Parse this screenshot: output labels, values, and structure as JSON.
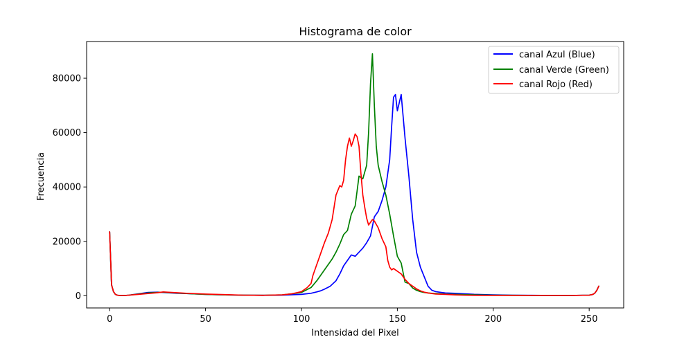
{
  "chart_data": {
    "type": "line",
    "title": "Histograma de color",
    "xlabel": "Intensidad del Pixel",
    "ylabel": "Frecuencia",
    "xlim": [
      -12,
      268
    ],
    "ylim": [
      -4500,
      93500
    ],
    "xticks": [
      0,
      50,
      100,
      150,
      200,
      250
    ],
    "yticks": [
      0,
      20000,
      40000,
      60000,
      80000
    ],
    "legend": "top-right",
    "grid": false,
    "series": [
      {
        "name": "canal Azul (Blue)",
        "color": "#0000ff",
        "x": [
          0,
          1,
          2,
          3,
          4,
          5,
          6,
          8,
          10,
          15,
          20,
          25,
          30,
          35,
          40,
          50,
          60,
          70,
          80,
          90,
          100,
          105,
          108,
          110,
          112,
          115,
          118,
          120,
          122,
          124,
          126,
          128,
          130,
          132,
          134,
          136,
          138,
          140,
          142,
          144,
          146,
          147,
          148,
          149,
          150,
          151,
          152,
          154,
          156,
          158,
          160,
          162,
          164,
          166,
          168,
          170,
          175,
          180,
          185,
          190,
          200,
          210,
          220,
          230,
          240,
          250,
          252,
          253,
          254,
          255
        ],
        "y": [
          23500,
          4000,
          1500,
          500,
          200,
          100,
          100,
          100,
          200,
          700,
          1200,
          1300,
          1100,
          900,
          800,
          500,
          300,
          200,
          150,
          200,
          500,
          900,
          1400,
          1800,
          2400,
          3500,
          5500,
          8000,
          11000,
          13000,
          15000,
          14500,
          16000,
          17500,
          19500,
          22000,
          29000,
          31000,
          35000,
          40000,
          50000,
          62000,
          73000,
          74000,
          68000,
          71000,
          74000,
          58000,
          44000,
          28000,
          16000,
          10500,
          7000,
          3500,
          2000,
          1500,
          1000,
          900,
          700,
          500,
          300,
          200,
          150,
          100,
          100,
          200,
          500,
          1000,
          2000,
          3500
        ]
      },
      {
        "name": "canal Verde (Green)",
        "color": "#008000",
        "x": [
          0,
          1,
          2,
          3,
          4,
          5,
          6,
          8,
          10,
          15,
          20,
          25,
          28,
          30,
          35,
          40,
          50,
          60,
          70,
          80,
          90,
          95,
          100,
          105,
          108,
          110,
          112,
          114,
          116,
          118,
          120,
          122,
          124,
          126,
          128,
          130,
          132,
          134,
          135,
          136,
          137,
          138,
          139,
          140,
          142,
          144,
          146,
          148,
          150,
          152,
          154,
          156,
          158,
          160,
          162,
          164,
          166,
          168,
          170,
          175,
          180,
          185,
          190,
          200,
          210,
          220,
          230,
          240,
          250,
          252,
          253,
          254,
          255
        ],
        "y": [
          23500,
          4000,
          1500,
          500,
          200,
          100,
          100,
          100,
          200,
          600,
          1000,
          1200,
          1300,
          1200,
          1000,
          800,
          500,
          300,
          200,
          150,
          300,
          700,
          1200,
          3000,
          5500,
          7500,
          9500,
          11500,
          13500,
          16000,
          19000,
          22500,
          24000,
          30000,
          33000,
          44000,
          43000,
          48000,
          60000,
          78000,
          89000,
          70000,
          55000,
          48000,
          42000,
          37000,
          30000,
          22000,
          14500,
          12000,
          5000,
          4500,
          2800,
          2000,
          1500,
          1200,
          1000,
          900,
          800,
          600,
          500,
          400,
          300,
          200,
          150,
          100,
          100,
          100,
          200,
          500,
          1000,
          2000,
          3500
        ]
      },
      {
        "name": "canal Rojo (Red)",
        "color": "#ff0000",
        "x": [
          0,
          1,
          2,
          3,
          4,
          5,
          6,
          8,
          10,
          15,
          20,
          25,
          28,
          30,
          35,
          40,
          50,
          60,
          70,
          80,
          90,
          95,
          100,
          103,
          105,
          106,
          108,
          110,
          112,
          114,
          116,
          117,
          118,
          120,
          121,
          122,
          123,
          124,
          125,
          126,
          127,
          128,
          129,
          130,
          131,
          132,
          133,
          134,
          135,
          136,
          137,
          138,
          140,
          142,
          144,
          145,
          146,
          147,
          148,
          149,
          150,
          152,
          154,
          156,
          158,
          160,
          162,
          164,
          166,
          168,
          170,
          175,
          180,
          185,
          190,
          200,
          210,
          220,
          230,
          240,
          250,
          252,
          253,
          254,
          255
        ],
        "y": [
          23500,
          4000,
          1500,
          500,
          200,
          100,
          100,
          100,
          200,
          500,
          800,
          1100,
          1400,
          1300,
          1100,
          900,
          600,
          400,
          200,
          150,
          300,
          700,
          1500,
          3000,
          4500,
          7500,
          11500,
          15500,
          19500,
          23000,
          28000,
          32500,
          37000,
          40500,
          40000,
          42500,
          50000,
          55000,
          58000,
          55000,
          57000,
          59500,
          58500,
          55000,
          45000,
          37000,
          32500,
          28500,
          26000,
          27000,
          28000,
          27500,
          25000,
          21000,
          18000,
          13000,
          10500,
          9500,
          10000,
          9500,
          9000,
          8000,
          6000,
          4500,
          3500,
          2500,
          1800,
          1300,
          1000,
          800,
          600,
          500,
          300,
          200,
          150,
          100,
          100,
          100,
          100,
          100,
          200,
          500,
          1000,
          2000,
          3500
        ]
      }
    ]
  }
}
